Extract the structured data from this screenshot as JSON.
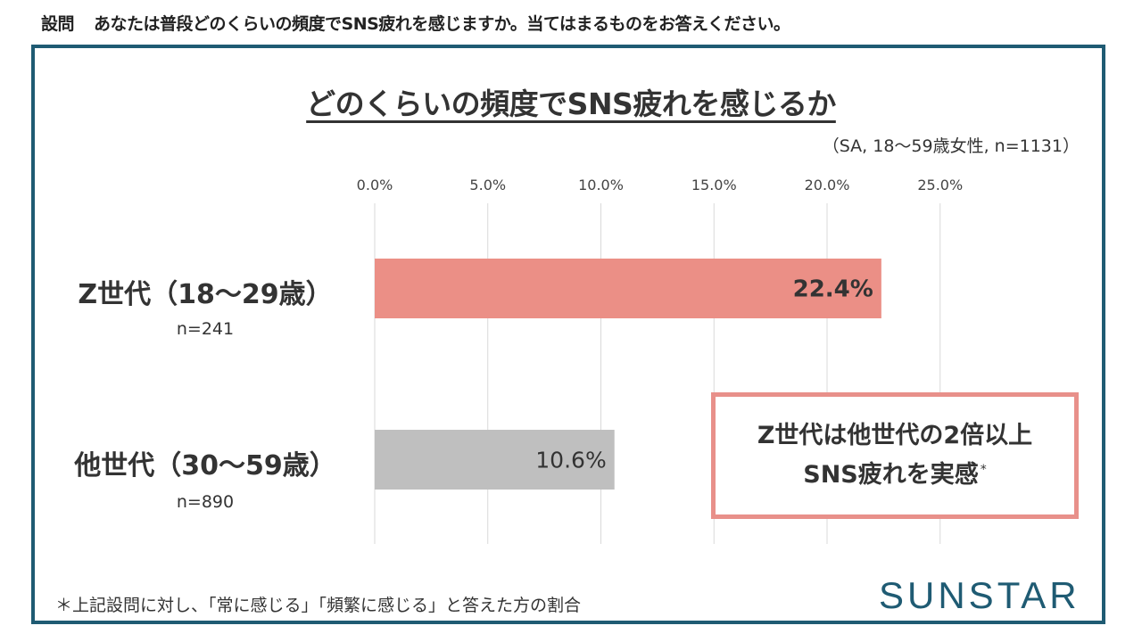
{
  "question": {
    "label": "設問",
    "text": "あなたは普段どのくらいの頻度でSNS疲れを感じますか。当てはまるものをお答えください。"
  },
  "chart_data": {
    "type": "bar",
    "orientation": "horizontal",
    "title": "どのくらいの頻度でSNS疲れを感じるか",
    "subtitle": "（SA, 18～59歳女性, n=1131）",
    "categories": [
      "Z世代（18～29歳）",
      "他世代（30～59歳）"
    ],
    "sample_sizes": [
      "n=241",
      "n=890"
    ],
    "values": [
      22.4,
      10.6
    ],
    "value_labels": [
      "22.4%",
      "10.6%"
    ],
    "bar_colors": [
      "#eb8f86",
      "#bfbfbf"
    ],
    "xlim": [
      0,
      25
    ],
    "xticks": [
      "0.0%",
      "5.0%",
      "10.0%",
      "15.0%",
      "20.0%",
      "25.0%"
    ],
    "xtick_values": [
      0,
      5,
      10,
      15,
      20,
      25
    ],
    "grid": true,
    "xlabel": "",
    "ylabel": ""
  },
  "callout": {
    "line1": "Z世代は他世代の2倍以上",
    "line2": "SNS疲れを実感",
    "mark": "*"
  },
  "footnote": "＊上記設問に対し、「常に感じる」「頻繁に感じる」と答えた方の割合",
  "logo": "SUNSTAR",
  "colors": {
    "frame": "#1f5b73",
    "accent": "#eb8f86",
    "other": "#bfbfbf",
    "callout_border": "#e8908a"
  }
}
